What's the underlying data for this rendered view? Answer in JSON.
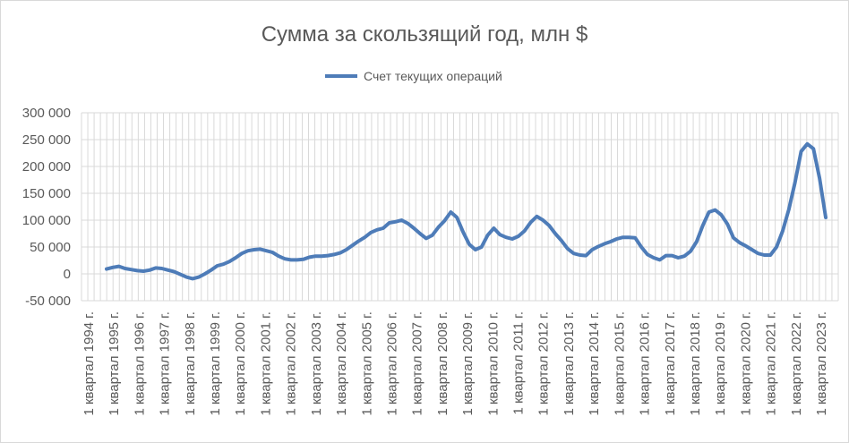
{
  "chart_data": {
    "type": "line",
    "title": "Сумма за скользящий год, млн $",
    "xlabel": "",
    "ylabel": "",
    "ylim": [
      -50000,
      300000
    ],
    "yticks": [
      -50000,
      0,
      50000,
      100000,
      150000,
      200000,
      250000,
      300000
    ],
    "ytick_labels": [
      "-50 000",
      "0",
      "50 000",
      "100 000",
      "150 000",
      "200 000",
      "250 000",
      "300 000"
    ],
    "xtick_labels": [
      "1 квартал 1994 г.",
      "1 квартал 1995 г.",
      "1 квартал 1996 г.",
      "1 квартал 1997 г.",
      "1 квартал 1998 г.",
      "1 квартал 1999 г.",
      "1 квартал 2000 г.",
      "1 квартал 2001 г.",
      "1 квартал 2002 г.",
      "1 квартал 2003 г.",
      "1 квартал 2004 г.",
      "1 квартал 2005 г.",
      "1 квартал 2006 г.",
      "1 квартал 2007 г.",
      "1 квартал 2008 г.",
      "1 квартал 2009 г.",
      "1 квартал 2010 г.",
      "1 квартал 2011 г.",
      "1 квартал 2012 г.",
      "1 квартал 2013 г.",
      "1 квартал 2014 г.",
      "1 квартал 2015 г.",
      "1 квартал 2016 г.",
      "1 квартал 2017 г.",
      "1 квартал 2018 г.",
      "1 квартал 2019 г.",
      "1 квартал 2020 г.",
      "1 квартал 2021 г.",
      "1 квартал 2022 г.",
      "1 квартал 2023 г."
    ],
    "grid": true,
    "legend_position": "top-center",
    "colors": {
      "series": "#4e7cb8",
      "grid": "#d9d9d9",
      "text": "#595959"
    },
    "series": [
      {
        "name": "Счет текущих операций",
        "values": [
          9000,
          12000,
          14000,
          10000,
          8000,
          6000,
          5000,
          7000,
          11000,
          10000,
          7000,
          4000,
          -1000,
          -6000,
          -9000,
          -6000,
          0,
          7000,
          15000,
          18000,
          23000,
          30000,
          38000,
          43000,
          45000,
          46000,
          43000,
          40000,
          33000,
          28000,
          26000,
          26000,
          27000,
          31000,
          33000,
          33000,
          34000,
          36000,
          39000,
          45000,
          53000,
          61000,
          68000,
          77000,
          82000,
          85000,
          95000,
          97000,
          100000,
          94000,
          85000,
          75000,
          66000,
          72000,
          87000,
          99000,
          115000,
          105000,
          78000,
          55000,
          45000,
          50000,
          72000,
          85000,
          73000,
          68000,
          65000,
          70000,
          80000,
          96000,
          107000,
          100000,
          90000,
          75000,
          62000,
          47000,
          38000,
          35000,
          34000,
          45000,
          51000,
          56000,
          60000,
          65000,
          68000,
          68000,
          67000,
          50000,
          36000,
          30000,
          26000,
          34000,
          34000,
          30000,
          33000,
          42000,
          60000,
          90000,
          115000,
          119000,
          110000,
          93000,
          67000,
          58000,
          52000,
          45000,
          38000,
          35000,
          35000,
          50000,
          80000,
          120000,
          170000,
          228000,
          242000,
          233000,
          178000,
          105000
        ]
      }
    ]
  }
}
